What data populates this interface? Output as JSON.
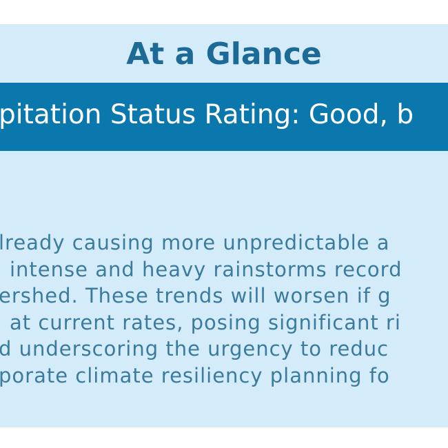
{
  "header": {
    "title": "At a Glance"
  },
  "banner": {
    "text": "pitation Status Rating: Good, b"
  },
  "body": {
    "lines": [
      "lready causing more unpredictable a",
      "intense and heavy rainstorms record",
      "ershed. These trends will worsen if g",
      "at current rates, posing significant ri",
      "d underscoring the urgency to reduc",
      "porate climate resiliency planning fo"
    ]
  }
}
